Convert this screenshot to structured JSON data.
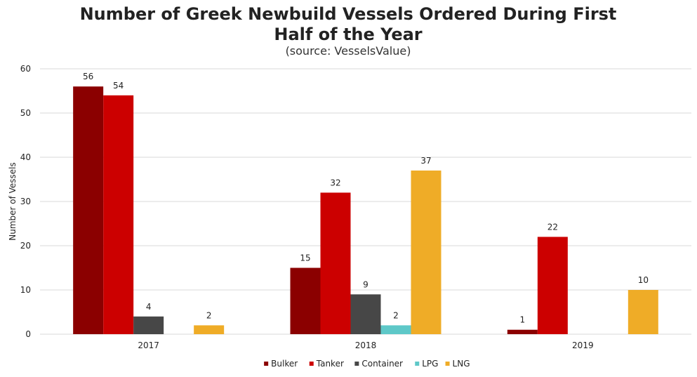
{
  "chart_data": {
    "type": "bar",
    "title_line1": "Number of Greek Newbuild Vessels Ordered During First",
    "title_line2": "Half of the Year",
    "subtitle": "(source: VesselsValue)",
    "xlabel": "",
    "ylabel": "Number of Vessels",
    "ylim": [
      0,
      60
    ],
    "yticks": [
      0,
      10,
      20,
      30,
      40,
      50,
      60
    ],
    "grid": true,
    "legend_position": "bottom",
    "categories": [
      "2017",
      "2018",
      "2019"
    ],
    "series": [
      {
        "name": "Bulker",
        "color": "#8b0000",
        "values": [
          56,
          15,
          1
        ]
      },
      {
        "name": "Tanker",
        "color": "#cc0000",
        "values": [
          54,
          32,
          22
        ]
      },
      {
        "name": "Container",
        "color": "#474747",
        "values": [
          4,
          9,
          null
        ]
      },
      {
        "name": "LPG",
        "color": "#5ec8c8",
        "values": [
          null,
          2,
          null
        ]
      },
      {
        "name": "LNG",
        "color": "#efac27",
        "values": [
          2,
          37,
          10
        ]
      }
    ]
  }
}
